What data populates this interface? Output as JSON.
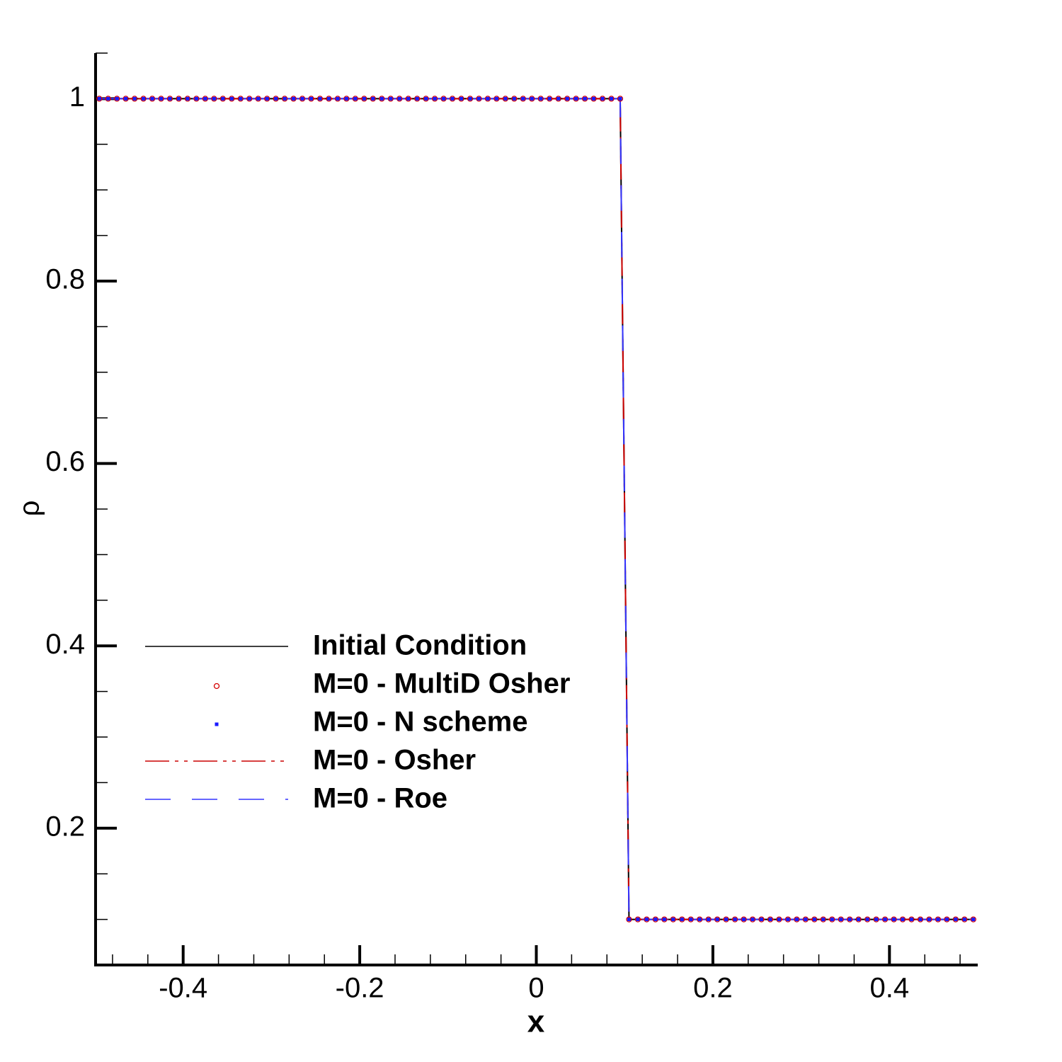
{
  "chart_data": {
    "type": "line",
    "x_label": "x",
    "y_label": "ρ",
    "xlim": [
      -0.5,
      0.5
    ],
    "ylim": [
      0.05,
      1.05
    ],
    "xticks": [
      -0.4,
      -0.2,
      0,
      0.2,
      0.4
    ],
    "yticks": [
      0.2,
      0.4,
      0.6,
      0.8,
      1
    ],
    "xminorticks": [
      -0.48,
      -0.44,
      -0.36,
      -0.32,
      -0.28,
      -0.24,
      -0.16,
      -0.12,
      -0.08,
      -0.04,
      0.04,
      0.08,
      0.12,
      0.16,
      0.24,
      0.28,
      0.32,
      0.36,
      0.44,
      0.48
    ],
    "yminorticks": [
      0.1,
      0.15,
      0.25,
      0.3,
      0.35,
      0.45,
      0.5,
      0.55,
      0.65,
      0.7,
      0.75,
      0.85,
      0.9,
      0.95,
      1.05
    ],
    "x": [
      -0.495,
      -0.485,
      -0.475,
      -0.465,
      -0.455,
      -0.445,
      -0.435,
      -0.425,
      -0.415,
      -0.405,
      -0.395,
      -0.385,
      -0.375,
      -0.365,
      -0.355,
      -0.345,
      -0.335,
      -0.325,
      -0.315,
      -0.305,
      -0.295,
      -0.285,
      -0.275,
      -0.265,
      -0.255,
      -0.245,
      -0.235,
      -0.225,
      -0.215,
      -0.205,
      -0.195,
      -0.185,
      -0.175,
      -0.165,
      -0.155,
      -0.145,
      -0.135,
      -0.125,
      -0.115,
      -0.105,
      -0.095,
      -0.085,
      -0.075,
      -0.065,
      -0.055,
      -0.045,
      -0.035,
      -0.025,
      -0.015,
      -0.005,
      0.005,
      0.015,
      0.025,
      0.035,
      0.045,
      0.055,
      0.065,
      0.075,
      0.085,
      0.095,
      0.105,
      0.115,
      0.125,
      0.135,
      0.145,
      0.155,
      0.165,
      0.175,
      0.185,
      0.195,
      0.205,
      0.215,
      0.225,
      0.235,
      0.245,
      0.255,
      0.265,
      0.275,
      0.285,
      0.295,
      0.305,
      0.315,
      0.325,
      0.335,
      0.345,
      0.355,
      0.365,
      0.375,
      0.385,
      0.395,
      0.405,
      0.415,
      0.425,
      0.435,
      0.445,
      0.455,
      0.465,
      0.475,
      0.485,
      0.495
    ],
    "series": [
      {
        "name": "Initial Condition",
        "color": "#000000",
        "style": "line",
        "dash": "solid",
        "values": [
          1,
          1,
          1,
          1,
          1,
          1,
          1,
          1,
          1,
          1,
          1,
          1,
          1,
          1,
          1,
          1,
          1,
          1,
          1,
          1,
          1,
          1,
          1,
          1,
          1,
          1,
          1,
          1,
          1,
          1,
          1,
          1,
          1,
          1,
          1,
          1,
          1,
          1,
          1,
          1,
          1,
          1,
          1,
          1,
          1,
          1,
          1,
          1,
          1,
          1,
          1,
          1,
          1,
          1,
          1,
          1,
          1,
          1,
          1,
          1,
          0.1,
          0.1,
          0.1,
          0.1,
          0.1,
          0.1,
          0.1,
          0.1,
          0.1,
          0.1,
          0.1,
          0.1,
          0.1,
          0.1,
          0.1,
          0.1,
          0.1,
          0.1,
          0.1,
          0.1,
          0.1,
          0.1,
          0.1,
          0.1,
          0.1,
          0.1,
          0.1,
          0.1,
          0.1,
          0.1,
          0.1,
          0.1,
          0.1,
          0.1,
          0.1,
          0.1,
          0.1,
          0.1,
          0.1,
          0.1
        ]
      },
      {
        "name": "M=0 - MultiD Osher",
        "color": "#d40000",
        "style": "marker",
        "marker": "circle",
        "values": [
          1,
          1,
          1,
          1,
          1,
          1,
          1,
          1,
          1,
          1,
          1,
          1,
          1,
          1,
          1,
          1,
          1,
          1,
          1,
          1,
          1,
          1,
          1,
          1,
          1,
          1,
          1,
          1,
          1,
          1,
          1,
          1,
          1,
          1,
          1,
          1,
          1,
          1,
          1,
          1,
          1,
          1,
          1,
          1,
          1,
          1,
          1,
          1,
          1,
          1,
          1,
          1,
          1,
          1,
          1,
          1,
          1,
          1,
          1,
          1,
          0.1,
          0.1,
          0.1,
          0.1,
          0.1,
          0.1,
          0.1,
          0.1,
          0.1,
          0.1,
          0.1,
          0.1,
          0.1,
          0.1,
          0.1,
          0.1,
          0.1,
          0.1,
          0.1,
          0.1,
          0.1,
          0.1,
          0.1,
          0.1,
          0.1,
          0.1,
          0.1,
          0.1,
          0.1,
          0.1,
          0.1,
          0.1,
          0.1,
          0.1,
          0.1,
          0.1,
          0.1,
          0.1,
          0.1,
          0.1
        ]
      },
      {
        "name": "M=0 - N scheme",
        "color": "#1a1aff",
        "style": "marker",
        "marker": "square",
        "values": [
          1,
          1,
          1,
          1,
          1,
          1,
          1,
          1,
          1,
          1,
          1,
          1,
          1,
          1,
          1,
          1,
          1,
          1,
          1,
          1,
          1,
          1,
          1,
          1,
          1,
          1,
          1,
          1,
          1,
          1,
          1,
          1,
          1,
          1,
          1,
          1,
          1,
          1,
          1,
          1,
          1,
          1,
          1,
          1,
          1,
          1,
          1,
          1,
          1,
          1,
          1,
          1,
          1,
          1,
          1,
          1,
          1,
          1,
          1,
          1,
          0.1,
          0.1,
          0.1,
          0.1,
          0.1,
          0.1,
          0.1,
          0.1,
          0.1,
          0.1,
          0.1,
          0.1,
          0.1,
          0.1,
          0.1,
          0.1,
          0.1,
          0.1,
          0.1,
          0.1,
          0.1,
          0.1,
          0.1,
          0.1,
          0.1,
          0.1,
          0.1,
          0.1,
          0.1,
          0.1,
          0.1,
          0.1,
          0.1,
          0.1,
          0.1,
          0.1,
          0.1,
          0.1,
          0.1,
          0.1
        ]
      },
      {
        "name": "M=0 - Osher",
        "color": "#cc0000",
        "style": "line",
        "dash": "dashdotdot",
        "values": [
          1,
          1,
          1,
          1,
          1,
          1,
          1,
          1,
          1,
          1,
          1,
          1,
          1,
          1,
          1,
          1,
          1,
          1,
          1,
          1,
          1,
          1,
          1,
          1,
          1,
          1,
          1,
          1,
          1,
          1,
          1,
          1,
          1,
          1,
          1,
          1,
          1,
          1,
          1,
          1,
          1,
          1,
          1,
          1,
          1,
          1,
          1,
          1,
          1,
          1,
          1,
          1,
          1,
          1,
          1,
          1,
          1,
          1,
          1,
          1,
          0.1,
          0.1,
          0.1,
          0.1,
          0.1,
          0.1,
          0.1,
          0.1,
          0.1,
          0.1,
          0.1,
          0.1,
          0.1,
          0.1,
          0.1,
          0.1,
          0.1,
          0.1,
          0.1,
          0.1,
          0.1,
          0.1,
          0.1,
          0.1,
          0.1,
          0.1,
          0.1,
          0.1,
          0.1,
          0.1,
          0.1,
          0.1,
          0.1,
          0.1,
          0.1,
          0.1,
          0.1,
          0.1,
          0.1,
          0.1
        ]
      },
      {
        "name": "M=0 - Roe",
        "color": "#3333ff",
        "style": "line",
        "dash": "dashed",
        "values": [
          1,
          1,
          1,
          1,
          1,
          1,
          1,
          1,
          1,
          1,
          1,
          1,
          1,
          1,
          1,
          1,
          1,
          1,
          1,
          1,
          1,
          1,
          1,
          1,
          1,
          1,
          1,
          1,
          1,
          1,
          1,
          1,
          1,
          1,
          1,
          1,
          1,
          1,
          1,
          1,
          1,
          1,
          1,
          1,
          1,
          1,
          1,
          1,
          1,
          1,
          1,
          1,
          1,
          1,
          1,
          1,
          1,
          1,
          1,
          1,
          0.1,
          0.1,
          0.1,
          0.1,
          0.1,
          0.1,
          0.1,
          0.1,
          0.1,
          0.1,
          0.1,
          0.1,
          0.1,
          0.1,
          0.1,
          0.1,
          0.1,
          0.1,
          0.1,
          0.1,
          0.1,
          0.1,
          0.1,
          0.1,
          0.1,
          0.1,
          0.1,
          0.1,
          0.1,
          0.1,
          0.1,
          0.1,
          0.1,
          0.1,
          0.1,
          0.1,
          0.1,
          0.1,
          0.1,
          0.1
        ]
      }
    ]
  }
}
